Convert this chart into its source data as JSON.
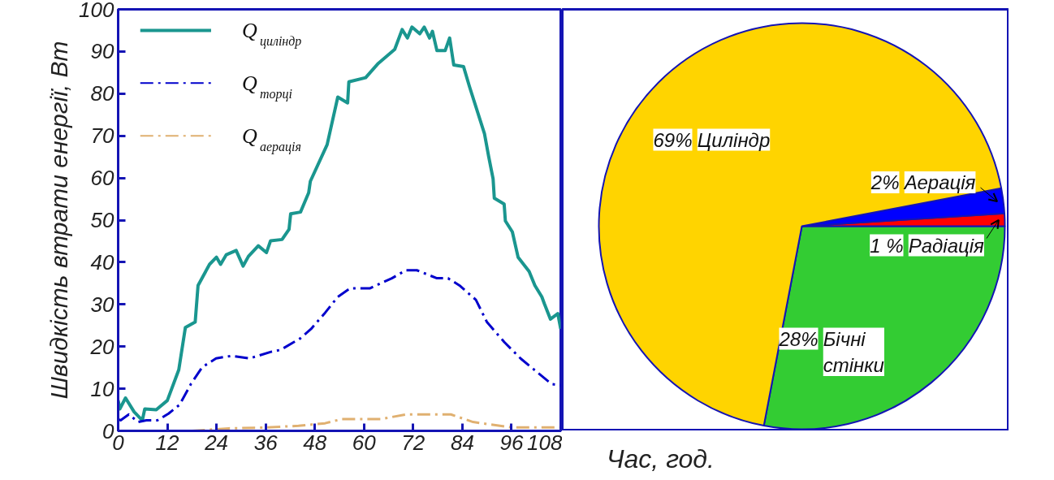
{
  "chart_data": [
    {
      "type": "line",
      "xlabel": "Час, год.",
      "ylabel": "Швидкість втрати енергії, Вт",
      "xlim": [
        0,
        108
      ],
      "xticks": [
        0,
        12,
        24,
        36,
        48,
        60,
        72,
        84,
        96,
        108
      ],
      "ylim": [
        0,
        100
      ],
      "yticks": [
        0,
        10,
        20,
        30,
        40,
        50,
        60,
        70,
        80,
        90,
        100
      ],
      "grid": false,
      "legend": "top left",
      "series": [
        {
          "name": "Q$_{циліндр}$",
          "color": "#1a968f",
          "line_style": "solid",
          "x": [
            0,
            0.4,
            1.8,
            3.9,
            5.9,
            6.5,
            9.3,
            12,
            14.8,
            16.4,
            18.8,
            19.5,
            22.3,
            24,
            25,
            26.4,
            28.8,
            30.5,
            31.8,
            34.2,
            36.2,
            37.2,
            40,
            41.7,
            42.1,
            44.5,
            46.5,
            46.9,
            51,
            53.6,
            56,
            56.3,
            60.4,
            63.5,
            67.5,
            69.3,
            70.6,
            71.7,
            73.6,
            74.7,
            76,
            76.7,
            77.8,
            79.8,
            80.9,
            81.9,
            84.3,
            85.7,
            89.4,
            90.4,
            91.5,
            91.8,
            94.2,
            94.5,
            96.2,
            97.6,
            100.3,
            101.7,
            103.4,
            104,
            105.5,
            107.3,
            108
          ],
          "values": [
            7.2,
            5.2,
            7.8,
            4.5,
            2.5,
            5.2,
            5,
            7.2,
            14.5,
            24.5,
            25.8,
            34.5,
            39.5,
            41.2,
            39.5,
            41.8,
            42.8,
            39.1,
            41.4,
            43.9,
            42.3,
            45.1,
            45.4,
            47.8,
            51.5,
            51.9,
            56.5,
            59.2,
            67.9,
            79.2,
            77.8,
            82.8,
            83.8,
            87.2,
            90.5,
            95.2,
            93.2,
            95.8,
            94.2,
            95.8,
            93.2,
            94.8,
            90.2,
            90.2,
            93.2,
            86.8,
            86.4,
            81.8,
            70.5,
            65.2,
            59.8,
            55.2,
            53.8,
            49.8,
            47.2,
            41.2,
            37.8,
            34.5,
            31.8,
            30.2,
            26.5,
            27.8,
            24.2
          ]
        },
        {
          "name": "Q$_{торці}$",
          "color": "#0000cc",
          "line_style": "dashdot",
          "x": [
            0,
            0.6,
            2.6,
            4.9,
            6.9,
            9.6,
            12.3,
            15,
            17.8,
            20.5,
            23.9,
            27.7,
            32.1,
            37.5,
            39.6,
            44.4,
            47.1,
            50.5,
            53.6,
            56.6,
            61.4,
            66.8,
            70.2,
            72.9,
            77.8,
            80.5,
            83.3,
            87.3,
            90,
            94.2,
            98.3,
            102.4,
            105.8,
            108
          ],
          "values": [
            2.8,
            2.5,
            3.9,
            2.1,
            2.5,
            2.5,
            4.1,
            6.2,
            11.2,
            15.1,
            17.2,
            17.8,
            17.2,
            18.8,
            19.2,
            21.9,
            24.2,
            28,
            31.8,
            33.8,
            33.8,
            36.2,
            38.1,
            38.1,
            36.2,
            36.2,
            34.5,
            31.1,
            25.8,
            21.1,
            17.1,
            13.8,
            11.1,
            10.8
          ]
        },
        {
          "name": "Q$_{аерація}$",
          "color": "#e0b070",
          "line_style": "dashdot",
          "x": [
            18,
            27,
            36,
            44,
            50.5,
            54.6,
            64.2,
            70.2,
            81.2,
            86.6,
            96.2,
            108
          ],
          "values": [
            0,
            0.6,
            0.8,
            1.2,
            1.8,
            2.8,
            2.8,
            3.9,
            3.9,
            2.1,
            0.8,
            0.8
          ]
        }
      ]
    },
    {
      "type": "pie",
      "categories": [
        "Циліндр",
        "Бічні стінки",
        "Радіація",
        "Аерація"
      ],
      "values": [
        69,
        28,
        1,
        2
      ],
      "colors": [
        "#ffd400",
        "#33cc33",
        "#ff0000",
        "#0000ff"
      ],
      "value_labels": [
        "69%",
        "28%",
        "1 %",
        "2%"
      ]
    }
  ]
}
